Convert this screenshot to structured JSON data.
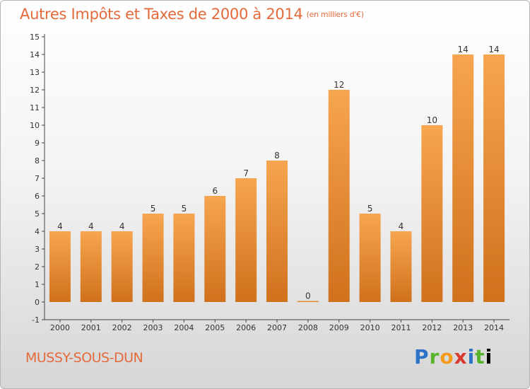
{
  "header": {
    "title": "Autres Impôts et Taxes de 2000 à 2014",
    "subtitle": "(en milliers d'€)"
  },
  "footer": {
    "commune": "MUSSY-SOUS-DUN",
    "brand_letters": [
      "P",
      "r",
      "o",
      "x",
      "i",
      "t",
      "i"
    ]
  },
  "colors": {
    "bar_light": "#f7a550",
    "bar_dark": "#d0711c",
    "title": "#e46a3c"
  },
  "chart_data": {
    "type": "bar",
    "title": "Autres Impôts et Taxes de 2000 à 2014",
    "categories": [
      "2000",
      "2001",
      "2002",
      "2003",
      "2004",
      "2005",
      "2006",
      "2007",
      "2008",
      "2009",
      "2010",
      "2011",
      "2012",
      "2013",
      "2014"
    ],
    "values": [
      4,
      4,
      4,
      5,
      5,
      6,
      7,
      8,
      0,
      12,
      5,
      4,
      10,
      14,
      14
    ],
    "ylim": [
      -1,
      15
    ],
    "yticks": [
      -1,
      0,
      1,
      2,
      3,
      4,
      5,
      6,
      7,
      8,
      9,
      10,
      11,
      12,
      13,
      14,
      15
    ],
    "grid": false,
    "data_labels": true
  }
}
